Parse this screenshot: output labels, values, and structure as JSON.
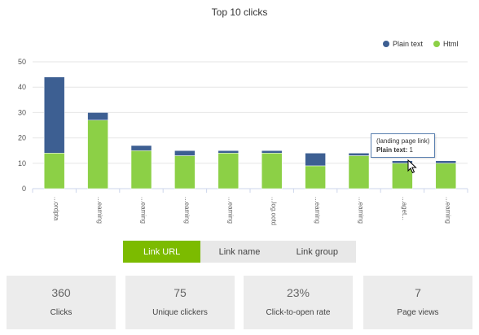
{
  "chart_data": {
    "type": "bar",
    "stacked": true,
    "title": "Top 10 clicks",
    "categories": [
      "...ordpta",
      "...eaming",
      "...eaming",
      "...eaming",
      "...eaming",
      "...log.ootd",
      "...eaming",
      "...eaming",
      "...aget...",
      "...eaming"
    ],
    "series": [
      {
        "name": "Plain text",
        "color": "#3d5f92",
        "values": [
          30,
          3,
          2,
          2,
          1,
          1,
          5,
          1,
          1,
          1
        ]
      },
      {
        "name": "Html",
        "color": "#8cd046",
        "values": [
          14,
          27,
          15,
          13,
          14,
          14,
          9,
          13,
          10,
          10
        ]
      }
    ],
    "ylim": [
      0,
      50
    ],
    "yticks": [
      0,
      10,
      20,
      30,
      40,
      50
    ],
    "grid": true,
    "legend_position": "top-right"
  },
  "tooltip": {
    "line1": "(landing page link)",
    "label": "Plain text:",
    "value": "1"
  },
  "tabs": [
    {
      "label": "Link URL",
      "active": true
    },
    {
      "label": "Link name",
      "active": false
    },
    {
      "label": "Link group",
      "active": false
    }
  ],
  "stats": [
    {
      "value": "360",
      "label": "Clicks"
    },
    {
      "value": "75",
      "label": "Unique clickers"
    },
    {
      "value": "23%",
      "label": "Click-to-open rate"
    },
    {
      "value": "7",
      "label": "Page views"
    }
  ]
}
